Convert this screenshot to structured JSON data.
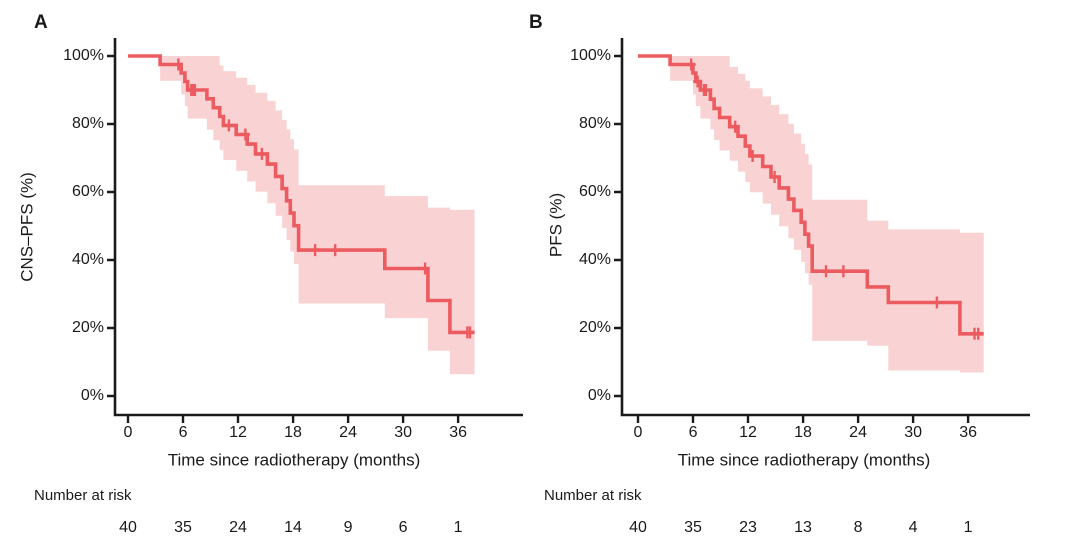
{
  "figure": {
    "background": "#ffffff",
    "panels": [
      {
        "label": "A",
        "y_axis_title": "CNS–PFS (%)",
        "x_axis_title": "Time since radiotherapy (months)",
        "number_at_risk_label": "Number at risk"
      },
      {
        "label": "B",
        "y_axis_title": "PFS (%)",
        "x_axis_title": "Time since radiotherapy (months)",
        "number_at_risk_label": "Number at risk"
      }
    ]
  },
  "colors": {
    "curve": "#ec5b5f",
    "ci_band": "#f9d3d4",
    "axis": "#1a1a1a",
    "text": "#1a1a1a"
  },
  "chart_data": [
    {
      "type": "line",
      "subtype": "kaplan_meier_step",
      "panel": "A",
      "title": "",
      "xlabel": "Time since radiotherapy (months)",
      "ylabel": "CNS–PFS (%)",
      "xlim": [
        0,
        38
      ],
      "ylim": [
        0,
        100
      ],
      "grid": false,
      "legend": "none",
      "x_tick_values": [
        0,
        6,
        12,
        18,
        24,
        30,
        36
      ],
      "x_tick_labels": [
        "0",
        "6",
        "12",
        "18",
        "24",
        "30",
        "36"
      ],
      "y_tick_values": [
        100,
        80,
        60,
        40,
        20,
        0
      ],
      "y_tick_labels": [
        "100%",
        "80%",
        "60%",
        "40%",
        "20%",
        "0%"
      ],
      "end_time": 37.8,
      "steps_time_survival_pct": [
        [
          0,
          100
        ],
        [
          3.5,
          97.5
        ],
        [
          5.8,
          95.0
        ],
        [
          6.2,
          92.5
        ],
        [
          6.5,
          90.0
        ],
        [
          8.6,
          87.4
        ],
        [
          9.3,
          84.8
        ],
        [
          10.0,
          82.2
        ],
        [
          10.4,
          79.6
        ],
        [
          11.8,
          76.9
        ],
        [
          13.0,
          74.1
        ],
        [
          13.9,
          71.2
        ],
        [
          15.2,
          68.2
        ],
        [
          16.1,
          64.6
        ],
        [
          16.8,
          61.0
        ],
        [
          17.3,
          57.4
        ],
        [
          17.7,
          53.8
        ],
        [
          18.1,
          50.1
        ],
        [
          18.6,
          42.9
        ],
        [
          28.0,
          37.5
        ],
        [
          32.7,
          28.1
        ],
        [
          35.1,
          18.7
        ]
      ],
      "censor_marks_time_pct": [
        [
          5.5,
          97.5
        ],
        [
          6.9,
          90.0
        ],
        [
          7.1,
          90.0
        ],
        [
          7.3,
          90.0
        ],
        [
          11.0,
          79.6
        ],
        [
          12.8,
          76.9
        ],
        [
          14.6,
          71.2
        ],
        [
          20.4,
          42.9
        ],
        [
          22.6,
          42.9
        ],
        [
          32.4,
          37.5
        ],
        [
          37.0,
          18.7
        ],
        [
          37.3,
          18.7
        ]
      ],
      "ci_steps_time_upper_lower": [
        [
          3.5,
          100,
          92.7
        ],
        [
          5.8,
          100,
          88.7
        ],
        [
          6.2,
          100,
          85.3
        ],
        [
          6.5,
          100,
          81.6
        ],
        [
          8.6,
          100,
          78.3
        ],
        [
          9.3,
          100,
          75.2
        ],
        [
          10.0,
          97.2,
          72.3
        ],
        [
          10.4,
          95.5,
          69.4
        ],
        [
          11.8,
          93.6,
          66.2
        ],
        [
          13.0,
          91.5,
          63.1
        ],
        [
          13.9,
          89.2,
          60.1
        ],
        [
          15.2,
          86.8,
          56.7
        ],
        [
          16.1,
          84.0,
          53.0
        ],
        [
          16.8,
          81.2,
          49.4
        ],
        [
          17.3,
          78.4,
          45.9
        ],
        [
          17.7,
          75.5,
          42.4
        ],
        [
          18.1,
          72.5,
          38.8
        ],
        [
          18.6,
          62.0,
          27.2
        ],
        [
          28.0,
          58.8,
          22.9
        ],
        [
          32.7,
          55.4,
          13.3
        ],
        [
          35.1,
          54.8,
          6.4
        ]
      ],
      "number_at_risk": {
        "times": [
          0,
          6,
          12,
          18,
          24,
          30,
          36
        ],
        "counts": [
          "40",
          "35",
          "24",
          "14",
          "9",
          "6",
          "1"
        ]
      }
    },
    {
      "type": "line",
      "subtype": "kaplan_meier_step",
      "panel": "B",
      "title": "",
      "xlabel": "Time since radiotherapy (months)",
      "ylabel": "PFS (%)",
      "xlim": [
        0,
        38
      ],
      "ylim": [
        0,
        100
      ],
      "grid": false,
      "legend": "none",
      "x_tick_values": [
        0,
        6,
        12,
        18,
        24,
        30,
        36
      ],
      "x_tick_labels": [
        "0",
        "6",
        "12",
        "18",
        "24",
        "30",
        "36"
      ],
      "y_tick_values": [
        100,
        80,
        60,
        40,
        20,
        0
      ],
      "y_tick_labels": [
        "100%",
        "80%",
        "60%",
        "40%",
        "20%",
        "0%"
      ],
      "end_time": 37.7,
      "steps_time_survival_pct": [
        [
          0,
          100
        ],
        [
          3.5,
          97.5
        ],
        [
          6.0,
          95.0
        ],
        [
          6.3,
          92.5
        ],
        [
          6.8,
          90.0
        ],
        [
          7.9,
          87.3
        ],
        [
          8.3,
          84.6
        ],
        [
          8.9,
          81.9
        ],
        [
          10.0,
          79.2
        ],
        [
          10.9,
          76.4
        ],
        [
          11.7,
          73.5
        ],
        [
          12.2,
          70.6
        ],
        [
          13.6,
          67.5
        ],
        [
          14.5,
          64.4
        ],
        [
          15.4,
          61.2
        ],
        [
          16.4,
          57.9
        ],
        [
          17.0,
          54.6
        ],
        [
          17.8,
          51.1
        ],
        [
          18.2,
          47.6
        ],
        [
          18.6,
          44.1
        ],
        [
          19.0,
          36.7
        ],
        [
          25.0,
          32.1
        ],
        [
          27.3,
          27.5
        ],
        [
          35.1,
          18.3
        ]
      ],
      "censor_marks_time_pct": [
        [
          5.8,
          97.5
        ],
        [
          6.5,
          92.5
        ],
        [
          7.2,
          90.0
        ],
        [
          7.4,
          90.0
        ],
        [
          10.6,
          79.2
        ],
        [
          12.5,
          70.6
        ],
        [
          14.9,
          64.4
        ],
        [
          20.5,
          36.7
        ],
        [
          22.4,
          36.7
        ],
        [
          32.6,
          27.5
        ],
        [
          36.7,
          18.3
        ],
        [
          37.1,
          18.3
        ]
      ],
      "ci_steps_time_upper_lower": [
        [
          3.5,
          100,
          92.7
        ],
        [
          6.0,
          100,
          88.7
        ],
        [
          6.3,
          100,
          85.3
        ],
        [
          6.8,
          100,
          81.6
        ],
        [
          7.9,
          100,
          78.4
        ],
        [
          8.3,
          100,
          75.3
        ],
        [
          8.9,
          100,
          72.2
        ],
        [
          10.0,
          96.8,
          69.2
        ],
        [
          10.9,
          94.8,
          66.0
        ],
        [
          11.7,
          92.7,
          62.9
        ],
        [
          12.2,
          90.5,
          59.9
        ],
        [
          13.6,
          88.1,
          56.6
        ],
        [
          14.5,
          85.6,
          53.3
        ],
        [
          15.4,
          82.9,
          49.9
        ],
        [
          16.4,
          80.1,
          46.4
        ],
        [
          17.0,
          77.2,
          43.0
        ],
        [
          17.8,
          74.2,
          39.5
        ],
        [
          18.2,
          71.2,
          36.1
        ],
        [
          18.6,
          68.1,
          32.7
        ],
        [
          19.0,
          57.7,
          16.2
        ],
        [
          25.0,
          51.6,
          14.8
        ],
        [
          27.3,
          49.0,
          7.5
        ],
        [
          35.1,
          48.0,
          6.9
        ]
      ],
      "number_at_risk": {
        "times": [
          0,
          6,
          12,
          18,
          24,
          30,
          36
        ],
        "counts": [
          "40",
          "35",
          "23",
          "13",
          "8",
          "4",
          "1"
        ]
      }
    }
  ]
}
